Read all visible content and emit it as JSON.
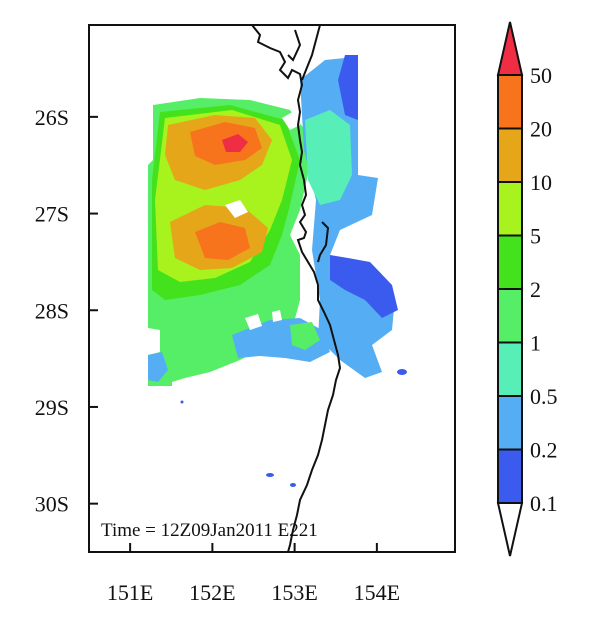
{
  "map": {
    "time_label": "Time = 12Z09Jan2011 E221",
    "lat_ticks": [
      {
        "value": -26,
        "label": "26S"
      },
      {
        "value": -27,
        "label": "27S"
      },
      {
        "value": -28,
        "label": "28S"
      },
      {
        "value": -29,
        "label": "29S"
      },
      {
        "value": -30,
        "label": "30S"
      }
    ],
    "lon_ticks": [
      {
        "value": 151,
        "label": "151E"
      },
      {
        "value": 152,
        "label": "152E"
      },
      {
        "value": 153,
        "label": "153E"
      },
      {
        "value": 154,
        "label": "154E"
      }
    ],
    "lon_range": [
      150.5,
      154.95
    ],
    "lat_range": [
      -25.05,
      -30.5
    ]
  },
  "colorbar": {
    "levels": [
      "0.1",
      "0.2",
      "0.5",
      "1",
      "2",
      "5",
      "10",
      "20",
      "50"
    ],
    "colors": [
      "#ffffff",
      "#3b5bef",
      "#55aef3",
      "#58eeb7",
      "#55ee66",
      "#44e21c",
      "#a8f21d",
      "#e6a619",
      "#f7741c",
      "#ef2e45"
    ]
  }
}
